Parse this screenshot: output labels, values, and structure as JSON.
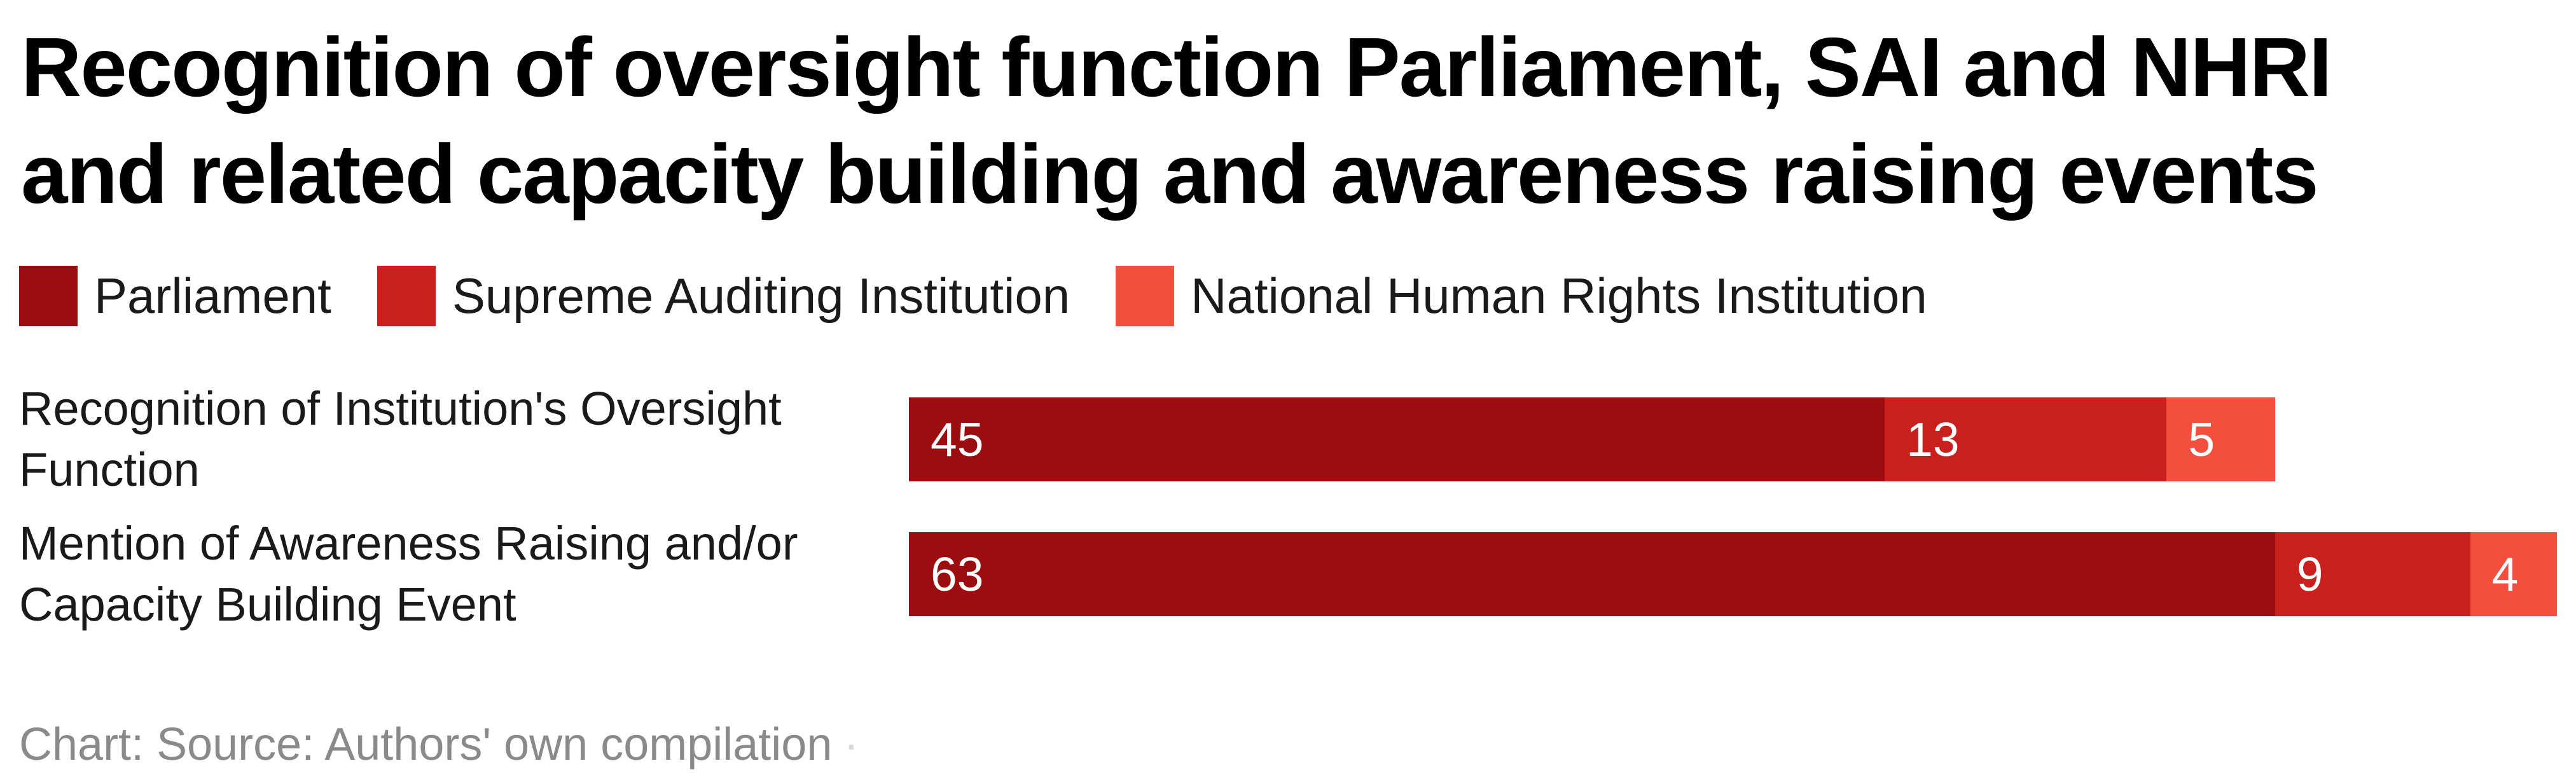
{
  "title": {
    "line1": "Recognition of oversight function Parliament, SAI and NHRI",
    "line2": "and related capacity building and awareness raising events"
  },
  "legend": [
    {
      "label": "Parliament",
      "color": "#9B0D0F"
    },
    {
      "label": "Supreme Auditing Institution",
      "color": "#C9201D"
    },
    {
      "label": "National Human Rights Institution",
      "color": "#F2503C"
    }
  ],
  "chart_data": {
    "type": "bar",
    "orientation": "horizontal",
    "stacked": true,
    "categories": [
      "Recognition of Institution's Oversight Function",
      "Mention of Awareness Raising and/or Capacity Building Event"
    ],
    "series": [
      {
        "name": "Parliament",
        "color": "#9B0D0F",
        "values": [
          45,
          63
        ]
      },
      {
        "name": "Supreme Auditing Institution",
        "color": "#C9201D",
        "values": [
          13,
          9
        ]
      },
      {
        "name": "National Human Rights Institution",
        "color": "#F2503C",
        "values": [
          5,
          4
        ]
      }
    ],
    "xlim": [
      0,
      76
    ],
    "value_labels": "inside-start, white",
    "legend_position": "top",
    "grid": false,
    "title": "Recognition of oversight function Parliament, SAI and NHRI and related capacity building and awareness raising events"
  },
  "footer": {
    "text": "Chart: Source: Authors' own compilation",
    "trailing_mark": "·"
  },
  "colors": {
    "background": "#ffffff",
    "title_text": "#000000",
    "label_text": "#1a1a1a",
    "footer_text": "#8a8a8a",
    "bar_value_text": "#ffffff"
  }
}
